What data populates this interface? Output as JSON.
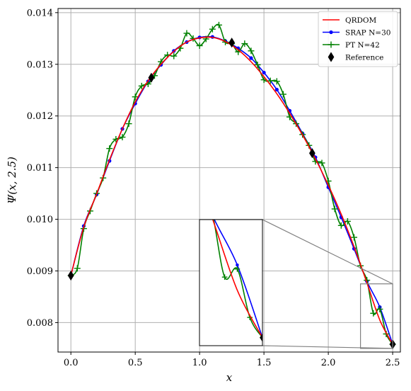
{
  "chart_data": {
    "type": "line",
    "xlabel": "x",
    "ylabel": "Ψ(x, 2.5)",
    "xlim": [
      -0.1,
      2.56
    ],
    "ylim": [
      0.00743,
      0.01408
    ],
    "xticks": [
      0.0,
      0.5,
      1.0,
      1.5,
      2.0,
      2.5
    ],
    "xtick_labels": [
      "0.0",
      "0.5",
      "1.0",
      "1.5",
      "2.0",
      "2.5"
    ],
    "yticks": [
      0.008,
      0.009,
      0.01,
      0.011,
      0.012,
      0.013,
      0.014
    ],
    "ytick_labels": [
      "0.008",
      "0.009",
      "0.010",
      "0.011",
      "0.012",
      "0.013",
      "0.014"
    ],
    "grid": true,
    "legend": "top-right",
    "series": [
      {
        "name": "QRDOM",
        "color": "#ff0000",
        "marker": "none",
        "x": [
          0.0,
          0.1,
          0.2,
          0.3,
          0.4,
          0.5,
          0.6,
          0.7,
          0.8,
          0.9,
          1.0,
          1.1,
          1.2,
          1.3,
          1.4,
          1.5,
          1.6,
          1.7,
          1.8,
          1.9,
          2.0,
          2.1,
          2.2,
          2.3,
          2.4,
          2.5
        ],
        "y": [
          0.00891,
          0.00985,
          0.01049,
          0.01115,
          0.01175,
          0.01227,
          0.01268,
          0.013,
          0.01325,
          0.01343,
          0.01351,
          0.01352,
          0.01344,
          0.01328,
          0.01305,
          0.01276,
          0.01243,
          0.01205,
          0.01163,
          0.01117,
          0.01066,
          0.0101,
          0.00947,
          0.00877,
          0.00805,
          0.00758
        ]
      },
      {
        "name": "SRAP N=30",
        "color": "#0000ff",
        "marker": "dot",
        "x": [
          0.0,
          0.1,
          0.2,
          0.3,
          0.4,
          0.5,
          0.6,
          0.7,
          0.8,
          0.9,
          1.0,
          1.1,
          1.2,
          1.3,
          1.4,
          1.5,
          1.6,
          1.7,
          1.8,
          1.9,
          2.0,
          2.1,
          2.2,
          2.3,
          2.4,
          2.5
        ],
        "y": [
          0.00891,
          0.00987,
          0.01048,
          0.01113,
          0.01175,
          0.01224,
          0.01267,
          0.01299,
          0.01326,
          0.01343,
          0.01352,
          0.01353,
          0.01345,
          0.01331,
          0.01312,
          0.01284,
          0.01251,
          0.0121,
          0.01166,
          0.0112,
          0.01062,
          0.01004,
          0.00943,
          0.0088,
          0.0083,
          0.00758
        ]
      },
      {
        "name": "PT N=42",
        "color": "#008000",
        "marker": "plus",
        "x": [
          0.0,
          0.05,
          0.1,
          0.15,
          0.2,
          0.25,
          0.3,
          0.35,
          0.4,
          0.45,
          0.5,
          0.55,
          0.6,
          0.65,
          0.7,
          0.75,
          0.8,
          0.85,
          0.9,
          0.95,
          1.0,
          1.05,
          1.1,
          1.15,
          1.2,
          1.25,
          1.3,
          1.35,
          1.4,
          1.45,
          1.5,
          1.55,
          1.6,
          1.65,
          1.7,
          1.75,
          1.8,
          1.85,
          1.9,
          1.95,
          2.0,
          2.05,
          2.1,
          2.15,
          2.2,
          2.25,
          2.3,
          2.35,
          2.4,
          2.45,
          2.5
        ],
        "y": [
          0.00891,
          0.00905,
          0.00982,
          0.01016,
          0.0105,
          0.0108,
          0.01137,
          0.01155,
          0.01159,
          0.01185,
          0.01237,
          0.01258,
          0.01262,
          0.01278,
          0.01305,
          0.01318,
          0.01316,
          0.01331,
          0.0136,
          0.0135,
          0.01336,
          0.01349,
          0.01368,
          0.01376,
          0.01343,
          0.0134,
          0.01324,
          0.0134,
          0.01326,
          0.01299,
          0.0127,
          0.01268,
          0.01267,
          0.01242,
          0.01198,
          0.01185,
          0.01164,
          0.01143,
          0.01112,
          0.01109,
          0.01074,
          0.0102,
          0.00988,
          0.00996,
          0.00965,
          0.0091,
          0.00882,
          0.00818,
          0.00826,
          0.00778,
          0.00758
        ]
      },
      {
        "name": "Reference",
        "color": "#000000",
        "marker": "diamond",
        "x": [
          0.0,
          0.625,
          1.25,
          1.875,
          2.5
        ],
        "y": [
          0.00891,
          0.01274,
          0.01342,
          0.01128,
          0.00758
        ]
      }
    ],
    "inset": {
      "xlim": [
        2.25,
        2.5
      ],
      "ylim": [
        0.0075,
        0.00875
      ],
      "series_refs": [
        "QRDOM",
        "SRAP N=30",
        "PT N=42",
        "Reference"
      ]
    }
  }
}
